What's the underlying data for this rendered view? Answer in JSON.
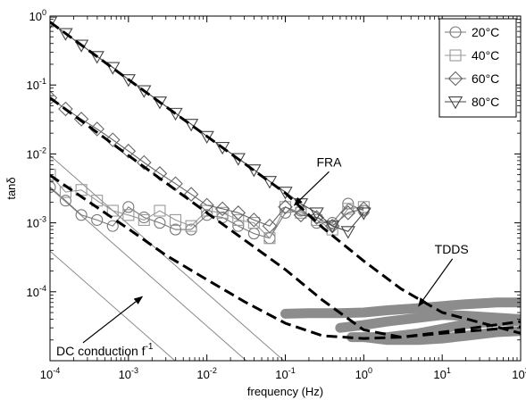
{
  "chart_data": {
    "type": "line",
    "xlabel": "frequency (Hz)",
    "ylabel": "tanδ",
    "xscale": "log",
    "yscale": "log",
    "xlim": [
      0.0001,
      100
    ],
    "ylim": [
      1e-05,
      1
    ],
    "grid": false,
    "legend_position": "top-right",
    "x_ticks": [
      {
        "value": 0.0001,
        "base": "10",
        "exp": "-4"
      },
      {
        "value": 0.001,
        "base": "10",
        "exp": "-3"
      },
      {
        "value": 0.01,
        "base": "10",
        "exp": "-2"
      },
      {
        "value": 0.1,
        "base": "10",
        "exp": "-1"
      },
      {
        "value": 1,
        "base": "10",
        "exp": "0"
      },
      {
        "value": 10,
        "base": "10",
        "exp": "1"
      },
      {
        "value": 100,
        "base": "10",
        "exp": "2"
      }
    ],
    "y_ticks": [
      {
        "value": 1,
        "base": "10",
        "exp": "0"
      },
      {
        "value": 0.1,
        "base": "10",
        "exp": "-1"
      },
      {
        "value": 0.01,
        "base": "10",
        "exp": "-2"
      },
      {
        "value": 0.001,
        "base": "10",
        "exp": "-3"
      },
      {
        "value": 0.0001,
        "base": "10",
        "exp": "-4"
      }
    ],
    "series": [
      {
        "name": "20°C",
        "marker": "circle",
        "color": "#777777",
        "x": [
          0.0001,
          0.000158,
          0.000251,
          0.000398,
          0.000631,
          0.001,
          0.00158,
          0.00251,
          0.00398,
          0.00631,
          0.01,
          0.0158,
          0.0251,
          0.0398,
          0.0631,
          0.1,
          0.158,
          0.251,
          0.398,
          0.631,
          1
        ],
        "y": [
          0.0033,
          0.0021,
          0.0013,
          0.0011,
          0.0009,
          0.0017,
          0.0012,
          0.001,
          0.0008,
          0.0008,
          0.0013,
          0.0012,
          0.0009,
          0.0007,
          0.0006,
          0.0014,
          0.0015,
          0.001,
          0.001,
          0.0019,
          0.0015
        ]
      },
      {
        "name": "40°C",
        "marker": "square",
        "color": "#999999",
        "x": [
          0.0001,
          0.000158,
          0.000251,
          0.000398,
          0.000631,
          0.001,
          0.00158,
          0.00251,
          0.00398,
          0.00631,
          0.01,
          0.0158,
          0.0251,
          0.0398,
          0.0631,
          0.1,
          0.158,
          0.251,
          0.398,
          0.631,
          1
        ],
        "y": [
          0.005,
          0.0028,
          0.003,
          0.0021,
          0.0015,
          0.0013,
          0.0011,
          0.0015,
          0.0011,
          0.0009,
          0.0015,
          0.0014,
          0.0011,
          0.001,
          0.0006,
          0.0017,
          0.0014,
          0.0011,
          0.0008,
          0.0016,
          0.0017
        ]
      },
      {
        "name": "60°C",
        "marker": "diamond",
        "color": "#666666",
        "x": [
          0.0001,
          0.000158,
          0.000251,
          0.000398,
          0.000631,
          0.001,
          0.00158,
          0.00251,
          0.00398,
          0.00631,
          0.01,
          0.0158,
          0.0251,
          0.0398,
          0.0631,
          0.1,
          0.158,
          0.251,
          0.398,
          0.631,
          1
        ],
        "y": [
          0.065,
          0.045,
          0.032,
          0.023,
          0.016,
          0.011,
          0.0075,
          0.0052,
          0.0037,
          0.0026,
          0.0018,
          0.0016,
          0.0014,
          0.0011,
          0.0009,
          0.0017,
          0.0013,
          0.0012,
          0.0009,
          0.0014,
          0.0016
        ]
      },
      {
        "name": "80°C",
        "marker": "triangle-down",
        "color": "#444444",
        "x": [
          0.0001,
          0.000158,
          0.000251,
          0.000398,
          0.000631,
          0.001,
          0.00158,
          0.00251,
          0.00398,
          0.00631,
          0.01,
          0.0158,
          0.0251,
          0.0398,
          0.0631,
          0.1,
          0.158,
          0.251,
          0.398,
          0.631,
          1
        ],
        "y": [
          0.82,
          0.56,
          0.38,
          0.26,
          0.18,
          0.12,
          0.083,
          0.057,
          0.039,
          0.027,
          0.018,
          0.0125,
          0.0086,
          0.0059,
          0.004,
          0.0028,
          0.0019,
          0.0014,
          0.0009,
          0.00075,
          0.0014
        ]
      }
    ],
    "fits": [
      {
        "x": [
          0.0001,
          0.001,
          0.01,
          0.1,
          0.3,
          1,
          3,
          10,
          100
        ],
        "y": [
          0.82,
          0.12,
          0.018,
          0.0027,
          0.00085,
          0.00028,
          0.00011,
          5e-05,
          2.5e-05
        ]
      },
      {
        "x": [
          0.0001,
          0.001,
          0.01,
          0.1,
          0.3,
          1,
          3,
          10,
          100
        ],
        "y": [
          0.065,
          0.0095,
          0.0014,
          0.00021,
          7.5e-05,
          2.8e-05,
          2.2e-05,
          2.5e-05,
          3.1e-05
        ]
      },
      {
        "x": [
          0.0001,
          0.001,
          0.003,
          0.01,
          0.03,
          0.1,
          0.3,
          1,
          3,
          10,
          100
        ],
        "y": [
          0.0049,
          0.00082,
          0.00034,
          0.00015,
          7.2e-05,
          3.5e-05,
          2.3e-05,
          2.1e-05,
          2.2e-05,
          2.6e-05,
          3.7e-05
        ]
      }
    ],
    "tdds_bands": [
      {
        "x": [
          0.1,
          0.2,
          0.5,
          1,
          2,
          5,
          10,
          20,
          50,
          100
        ],
        "y": [
          4.8e-05,
          4.9e-05,
          4.9e-05,
          5e-05,
          5.4e-05,
          5.8e-05,
          6.2e-05,
          6.6e-05,
          7e-05,
          7e-05
        ]
      },
      {
        "x": [
          0.5,
          1,
          2,
          5,
          10,
          20,
          50,
          100
        ],
        "y": [
          3e-05,
          3.3e-05,
          3.7e-05,
          4.2e-05,
          4.6e-05,
          4.5e-05,
          4.2e-05,
          4e-05
        ]
      },
      {
        "x": [
          0.7,
          1,
          2,
          5,
          10,
          20,
          50,
          100
        ],
        "y": [
          2.2e-05,
          2.2e-05,
          2.2e-05,
          2.5e-05,
          2.9e-05,
          3.4e-05,
          3.7e-05,
          3.8e-05
        ]
      },
      {
        "x": [
          1,
          2,
          5,
          10,
          20,
          50,
          100
        ],
        "y": [
          2.2e-05,
          2e-05,
          2e-05,
          2.1e-05,
          2.3e-05,
          2.6e-05,
          2.7e-05
        ]
      }
    ],
    "dc_lines": [
      {
        "x": [
          0.0001,
          0.008
        ],
        "y": [
          0.00039,
          4.9e-06
        ]
      },
      {
        "x": [
          0.0001,
          0.06
        ],
        "y": [
          0.0032,
          5.3e-06
        ]
      },
      {
        "x": [
          0.0001,
          0.3
        ],
        "y": [
          0.0095,
          3.2e-06
        ]
      }
    ],
    "annotations": {
      "fra": {
        "text": "FRA",
        "label_x": 0.25,
        "label_y": 0.0066,
        "arrow_to_x": 0.13,
        "arrow_to_y": 0.0018
      },
      "tdds": {
        "text": "TDDS",
        "label_x": 8,
        "label_y": 0.00036,
        "arrow_to_x": 5,
        "arrow_to_y": 6.2e-05
      },
      "dc": {
        "text": "DC conduction f",
        "sup": "-1",
        "label_x": 0.00012,
        "label_y": 1.2e-05,
        "arrow_to_x": 0.0015,
        "arrow_to_y": 8.5e-05
      }
    }
  }
}
